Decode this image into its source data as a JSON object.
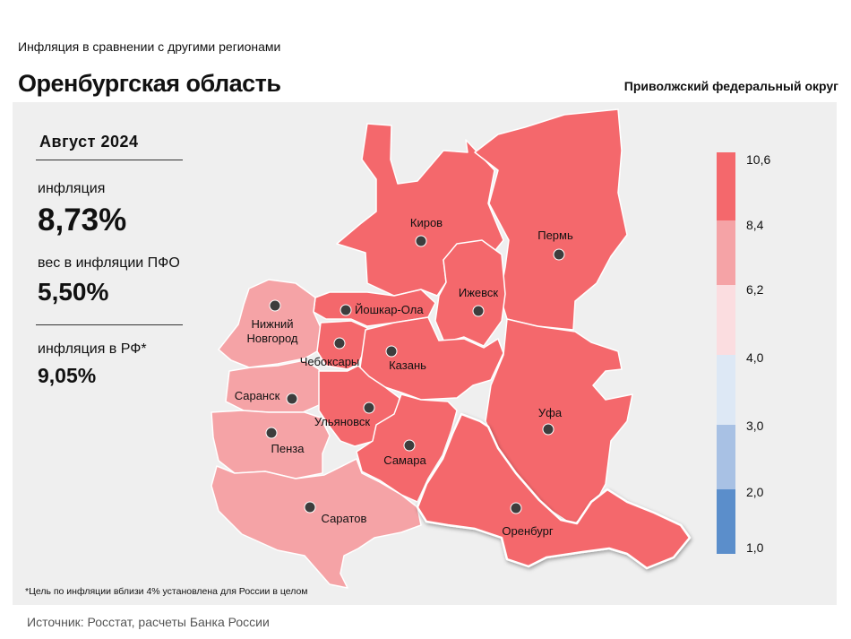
{
  "header": {
    "subtitle": "Инфляция  в сравнении  с другими  регионами",
    "title": "Оренбургская область",
    "district": "Приволжский федеральный округ"
  },
  "stats": {
    "period": "Август 2024",
    "inflation_label": "инфляция",
    "inflation_value": "8,73%",
    "weight_label": "вес в инфляции  ПФО",
    "weight_value": "5,50%",
    "russia_label": "инфляция  в РФ*",
    "russia_value": "9,05%"
  },
  "footnote": "*Цель по инфляции вблизи 4% установлена для России в целом",
  "source": "Источник: Росстат, расчеты Банка России",
  "legend": {
    "ticks": [
      "10,6",
      "8,4",
      "6,2",
      "4,0",
      "3,0",
      "2,0",
      "1,0"
    ],
    "colors": [
      "#f4686c",
      "#f5a3a6",
      "#fbdde0",
      "#dde8f5",
      "#a8c1e4",
      "#5b8ecb"
    ]
  },
  "cities": [
    {
      "name": "Киров"
    },
    {
      "name": "Пермь"
    },
    {
      "name": "Ижевск"
    },
    {
      "name": "Йошкар-Ола"
    },
    {
      "name": "Нижний\nНовгород"
    },
    {
      "name": "Чебоксары"
    },
    {
      "name": "Казань"
    },
    {
      "name": "Саранск"
    },
    {
      "name": "Ульяновск"
    },
    {
      "name": "Уфа"
    },
    {
      "name": "Пенза"
    },
    {
      "name": "Самара"
    },
    {
      "name": "Оренбург"
    },
    {
      "name": "Саратов"
    }
  ],
  "region_colors": {
    "high": "#f4686c",
    "mid": "#f5a3a6"
  }
}
